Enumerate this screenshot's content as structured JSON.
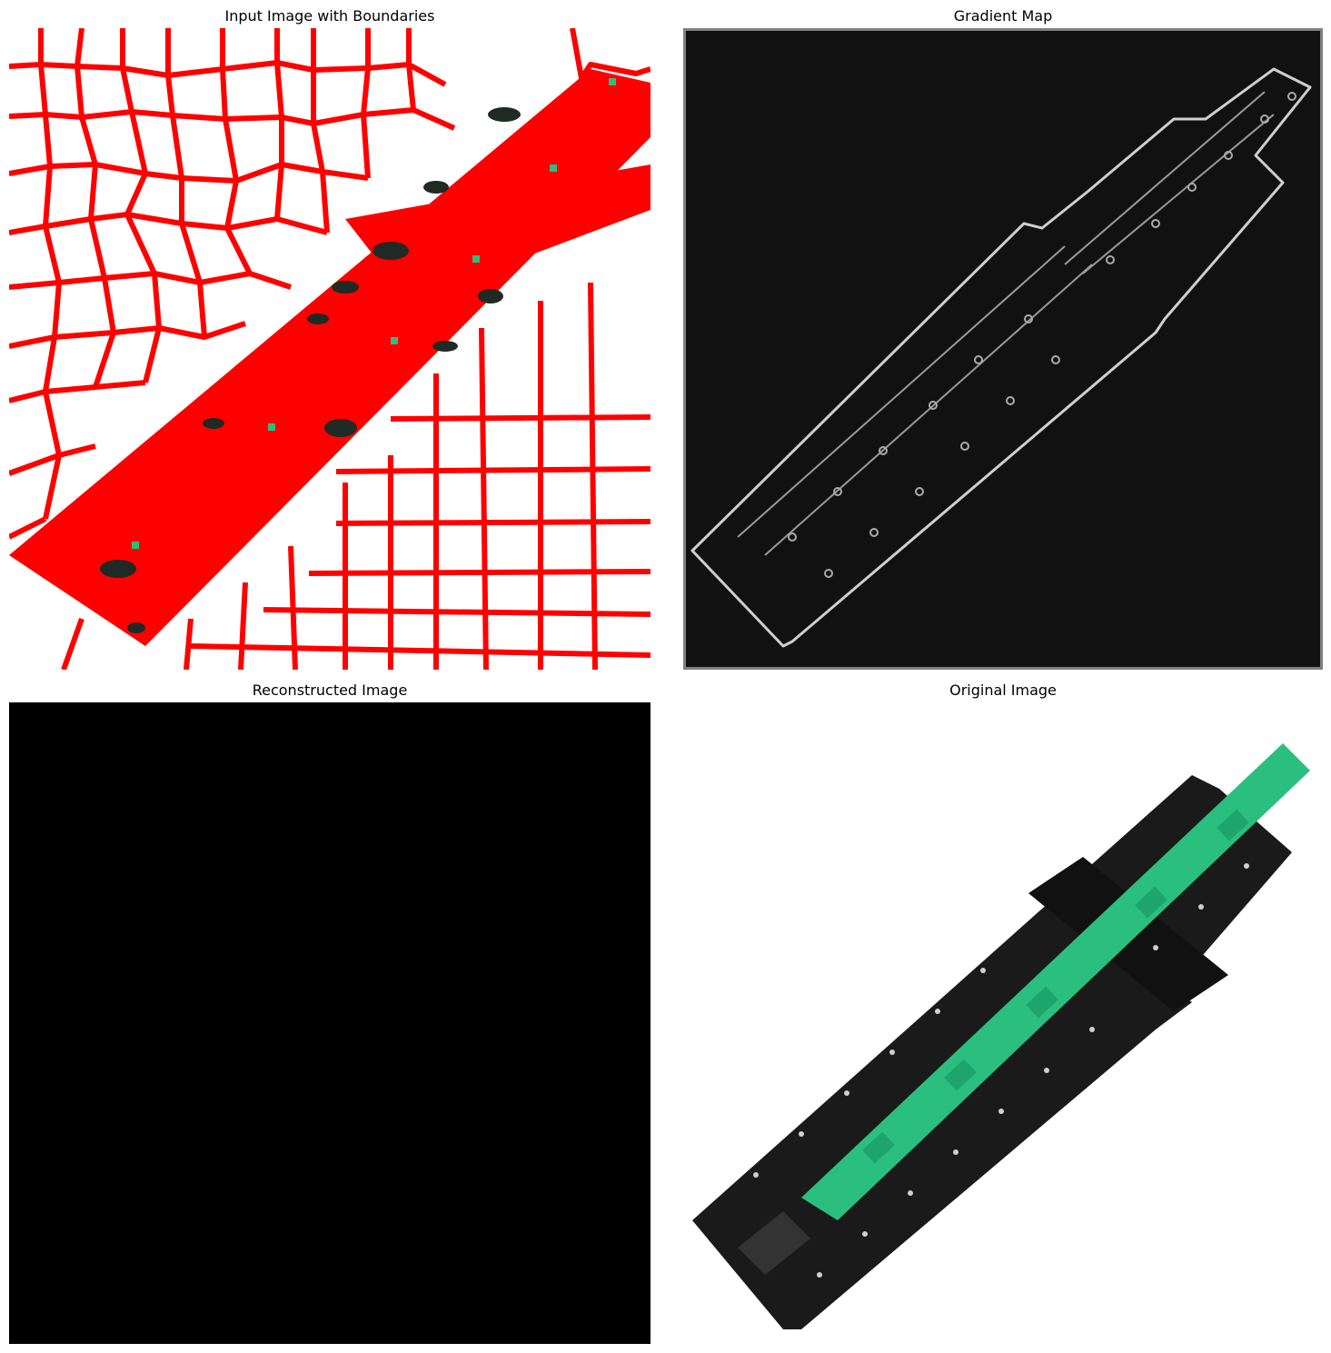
{
  "panels": [
    {
      "title": "Input Image with Boundaries"
    },
    {
      "title": "Gradient Map"
    },
    {
      "title": "Reconstructed Image"
    },
    {
      "title": "Original Image"
    }
  ],
  "colors": {
    "boundary": "#ff0000",
    "pcb_green": "#2bbf7f",
    "board_black": "#1a1a1a",
    "gradient_bg": "#111111",
    "gradient_frame": "#808080",
    "gradient_edge": "#cfcfcf",
    "reconstructed": "#000000"
  }
}
